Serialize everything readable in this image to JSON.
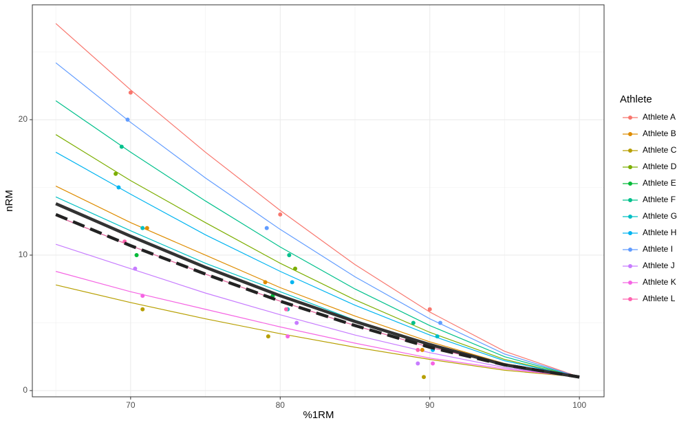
{
  "chart_data": {
    "type": "line",
    "x_label": "%1RM",
    "y_label": "nRM",
    "legend_title": "Athlete",
    "xlim": [
      63.43,
      101.65
    ],
    "ylim": [
      -0.46,
      28.48
    ],
    "xticks": [
      70,
      80,
      90,
      100
    ],
    "yticks": [
      0,
      10,
      20
    ],
    "x_minor_grid": [
      65,
      75,
      85,
      95
    ],
    "y_minor_grid": [
      5,
      15,
      25
    ],
    "grid": true,
    "curve_x": [
      65,
      70,
      75,
      80,
      85,
      90,
      95,
      100
    ],
    "series": [
      {
        "name": "Athlete A",
        "color": "#F8766D",
        "points_x": [
          70,
          80,
          90
        ],
        "points_y": [
          22,
          13,
          6
        ],
        "curve_y": [
          27.1,
          22.2,
          17.6,
          13.3,
          9.3,
          5.8,
          2.9,
          1
        ]
      },
      {
        "name": "Athlete B",
        "color": "#DE8C00",
        "points_x": [
          71.1,
          79,
          89.5
        ],
        "points_y": [
          12,
          8,
          3
        ],
        "curve_y": [
          15.1,
          12.4,
          10.0,
          7.6,
          5.5,
          3.6,
          2.0,
          1
        ]
      },
      {
        "name": "Athlete C",
        "color": "#B79F00",
        "points_x": [
          70.8,
          79.2,
          89.6
        ],
        "points_y": [
          6,
          4,
          1
        ],
        "curve_y": [
          7.8,
          6.5,
          5.3,
          4.2,
          3.2,
          2.3,
          1.5,
          1
        ]
      },
      {
        "name": "Athlete D",
        "color": "#7CAE00",
        "points_x": [
          69,
          81,
          90.9
        ],
        "points_y": [
          16,
          9,
          3
        ],
        "curve_y": [
          18.9,
          15.5,
          12.4,
          9.4,
          6.7,
          4.3,
          2.3,
          1
        ]
      },
      {
        "name": "Athlete E",
        "color": "#00BA38",
        "points_x": [
          70.4,
          79.5,
          91.1
        ],
        "points_y": [
          10,
          7,
          3
        ],
        "curve_y": [
          12.9,
          10.7,
          8.6,
          6.6,
          4.8,
          3.2,
          1.9,
          1
        ]
      },
      {
        "name": "Athlete F",
        "color": "#00C08B",
        "points_x": [
          69.4,
          80.6,
          88.9
        ],
        "points_y": [
          18,
          10,
          5
        ],
        "curve_y": [
          21.4,
          17.6,
          14.0,
          10.6,
          7.5,
          4.8,
          2.5,
          1
        ]
      },
      {
        "name": "Athlete G",
        "color": "#00BFC4",
        "points_x": [
          70.8,
          80.5,
          90.5
        ],
        "points_y": [
          12,
          6,
          4
        ],
        "curve_y": [
          14.3,
          11.8,
          9.4,
          7.3,
          5.2,
          3.4,
          1.96,
          1
        ]
      },
      {
        "name": "Athlete H",
        "color": "#00B4F0",
        "points_x": [
          69.2,
          80.8,
          90.2
        ],
        "points_y": [
          15,
          8,
          3
        ],
        "curve_y": [
          17.6,
          14.5,
          11.5,
          8.8,
          6.3,
          4.1,
          2.2,
          1
        ]
      },
      {
        "name": "Athlete I",
        "color": "#619CFF",
        "points_x": [
          69.8,
          79.1,
          90.7
        ],
        "points_y": [
          20,
          12,
          5
        ],
        "curve_y": [
          24.2,
          19.8,
          15.7,
          11.9,
          8.4,
          5.3,
          2.7,
          1
        ]
      },
      {
        "name": "Athlete J",
        "color": "#C77CFF",
        "points_x": [
          70.3,
          81.1,
          89.2
        ],
        "points_y": [
          9,
          5,
          2
        ],
        "curve_y": [
          10.8,
          9.0,
          7.2,
          5.6,
          4.1,
          2.8,
          1.7,
          1
        ]
      },
      {
        "name": "Athlete K",
        "color": "#F564E3",
        "points_x": [
          70.8,
          80.5,
          90.2
        ],
        "points_y": [
          7,
          4,
          2
        ],
        "curve_y": [
          8.8,
          7.3,
          6.0,
          4.7,
          3.5,
          2.4,
          1.6,
          1
        ]
      },
      {
        "name": "Athlete L",
        "color": "#FF64B0",
        "points_x": [
          69.6,
          80.4,
          89.2
        ],
        "points_y": [
          11,
          6,
          3
        ],
        "curve_y": [
          12.9,
          10.7,
          8.6,
          6.6,
          4.8,
          3.2,
          1.9,
          1
        ]
      }
    ],
    "reference_lines": [
      {
        "color": "#333333",
        "dash": "solid",
        "width": 4.5,
        "values": [
          13.8,
          11.4,
          9.1,
          7.0,
          5.1,
          3.4,
          1.9,
          1
        ]
      },
      {
        "color": "#222222",
        "dash": "dashed",
        "width": 4.5,
        "values": [
          13.0,
          10.7,
          8.6,
          6.6,
          4.8,
          3.2,
          1.9,
          1
        ]
      }
    ]
  }
}
